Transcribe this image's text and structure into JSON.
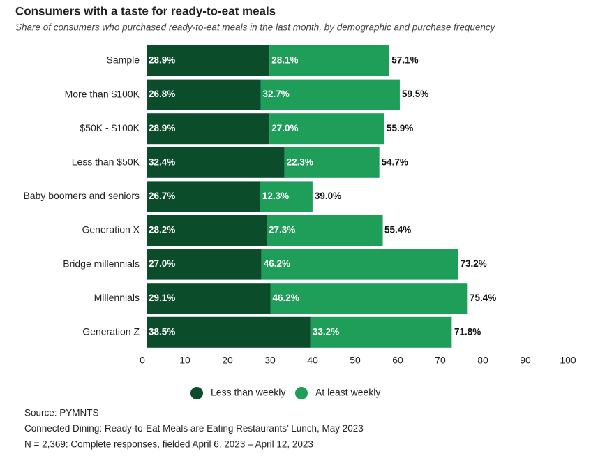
{
  "chart_data": {
    "type": "stacked-bar-horizontal",
    "title": "Consumers with a taste for ready-to-eat meals",
    "subtitle": "Share of consumers who purchased ready-to-eat meals in the last month, by demographic and purchase frequency",
    "categories": [
      "Sample",
      "More than $100K",
      "$50K - $100K",
      "Less than $50K",
      "Baby boomers and seniors",
      "Generation X",
      "Bridge millennials",
      "Millennials",
      "Generation Z"
    ],
    "series": [
      {
        "name": "Less than weekly",
        "color": "#0b4d2b",
        "values": [
          28.9,
          26.8,
          28.9,
          32.4,
          26.7,
          28.2,
          27.0,
          29.1,
          38.5
        ],
        "value_labels": [
          "28.9%",
          "26.8%",
          "28.9%",
          "32.4%",
          "26.7%",
          "28.2%",
          "27.0%",
          "29.1%",
          "38.5%"
        ]
      },
      {
        "name": "At least weekly",
        "color": "#1e9e58",
        "values": [
          28.1,
          32.7,
          27.0,
          22.3,
          12.3,
          27.3,
          46.2,
          46.2,
          33.2
        ],
        "value_labels": [
          "28.1%",
          "32.7%",
          "27.0%",
          "22.3%",
          "12.3%",
          "27.3%",
          "46.2%",
          "46.2%",
          "33.2%"
        ]
      }
    ],
    "total_values": [
      57.1,
      59.5,
      55.9,
      54.7,
      39.0,
      55.4,
      73.2,
      75.4,
      71.8
    ],
    "total_labels": [
      "57.1%",
      "59.5%",
      "55.9%",
      "54.7%",
      "39.0%",
      "55.4%",
      "73.2%",
      "75.4%",
      "71.8%"
    ],
    "xlim": [
      0,
      100
    ],
    "xticks": [
      0,
      10,
      20,
      30,
      40,
      50,
      60,
      70,
      80,
      90,
      100
    ],
    "source": [
      "Source: PYMNTS",
      "Connected Dining: Ready-to-Eat Meals are Eating Restaurants’ Lunch, May 2023",
      "N = 2,369: Complete responses, fielded April 6, 2023 – April 12, 2023"
    ]
  }
}
